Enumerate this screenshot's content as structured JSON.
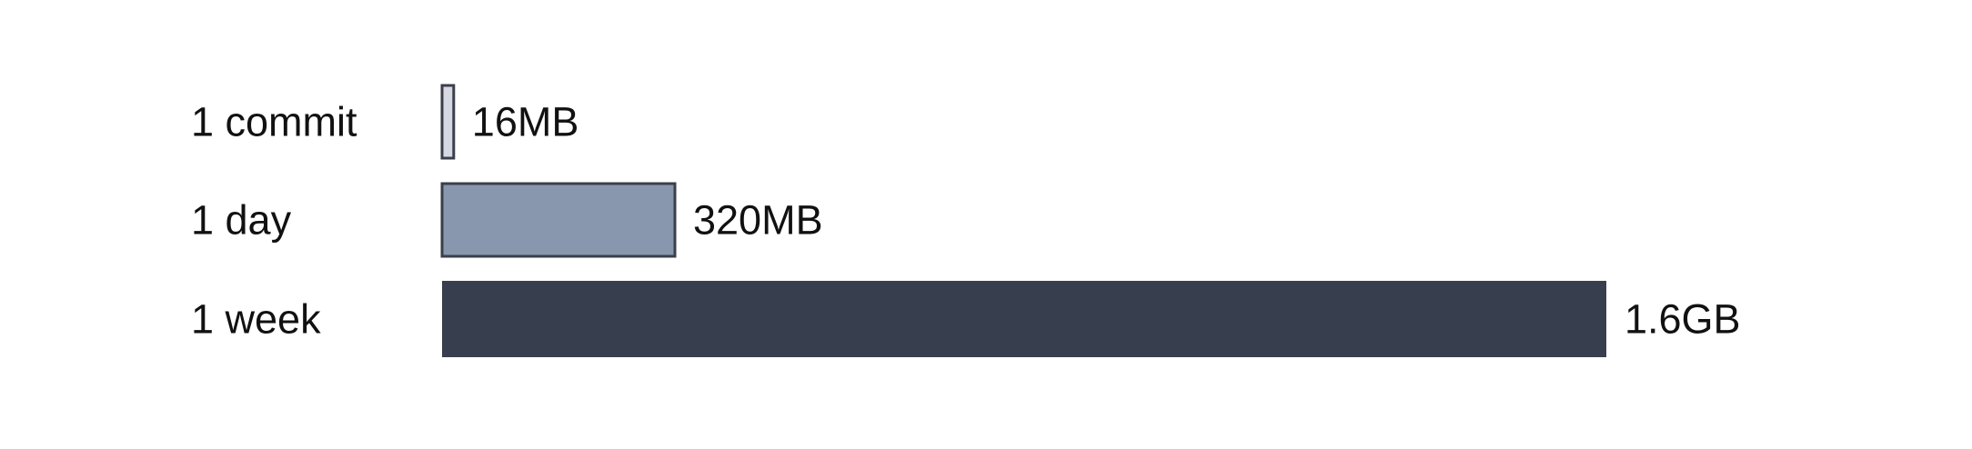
{
  "chart_data": {
    "type": "bar",
    "orientation": "horizontal",
    "title": "",
    "xlabel": "",
    "ylabel": "",
    "grid": false,
    "categories": [
      "1 commit",
      "1 day",
      "1 week"
    ],
    "values_mb": [
      16,
      320,
      1600
    ],
    "value_labels": [
      "16MB",
      "320MB",
      "1.6GB"
    ],
    "bar_colors": [
      "#D6D9E1",
      "#8897AE",
      "#373F4F"
    ],
    "bar_outline_color": "#3A3F4A"
  }
}
